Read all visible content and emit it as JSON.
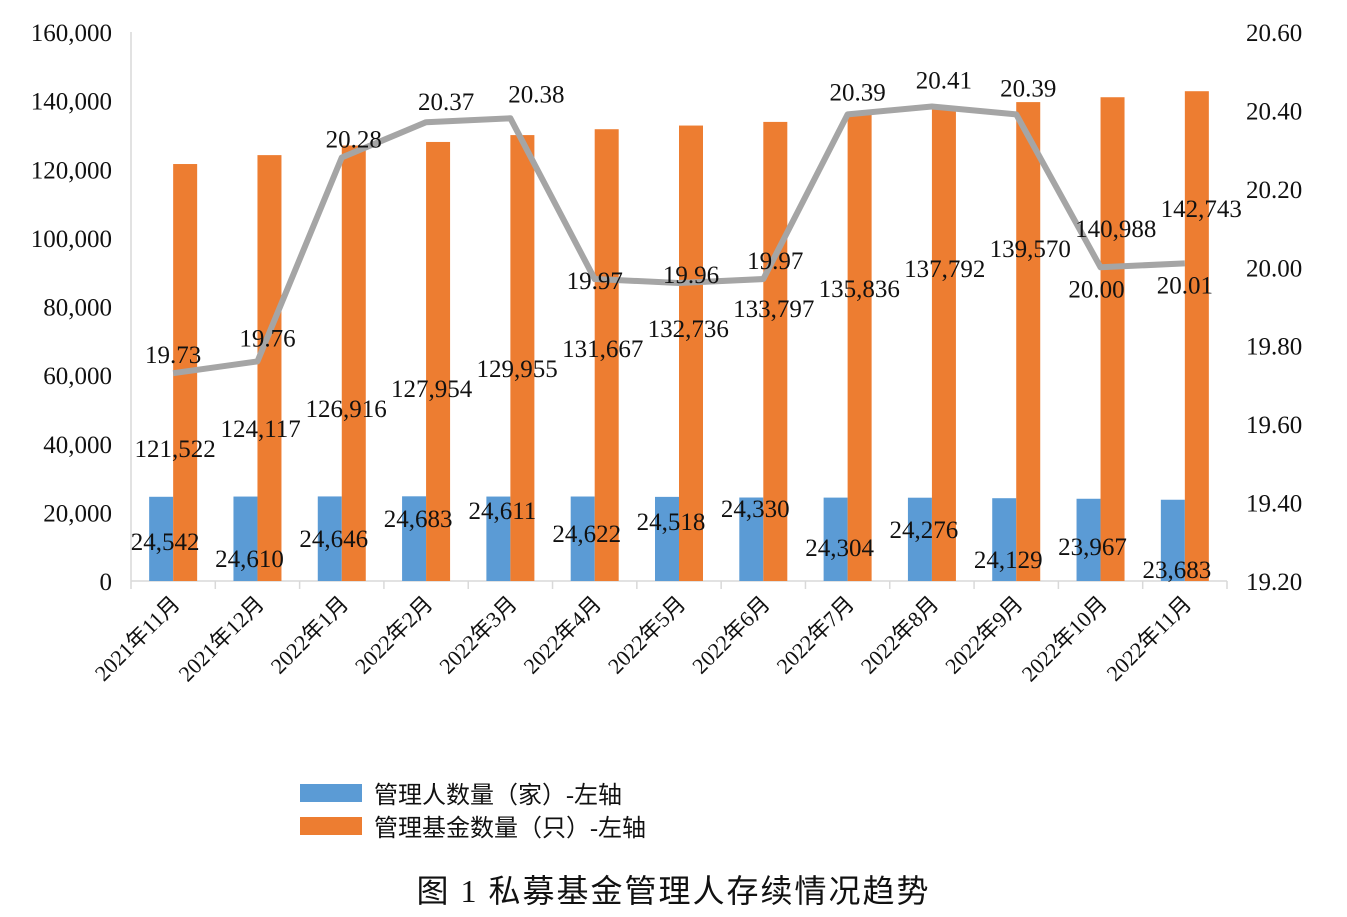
{
  "chart_data": {
    "type": "bar",
    "title": "图 1 私募基金管理人存续情况趋势",
    "categories": [
      "2021年11月",
      "2021年12月",
      "2022年1月",
      "2022年2月",
      "2022年3月",
      "2022年4月",
      "2022年5月",
      "2022年6月",
      "2022年7月",
      "2022年8月",
      "2022年9月",
      "2022年10月",
      "2022年11月"
    ],
    "series": [
      {
        "name": "管理人数量（家）-左轴",
        "type": "bar",
        "axis": "left",
        "color": "#5B9BD5",
        "values": [
          24542,
          24610,
          24646,
          24683,
          24611,
          24622,
          24518,
          24330,
          24304,
          24276,
          24129,
          23967,
          23683
        ],
        "labels": [
          "24,542",
          "24,610",
          "24,646",
          "24,683",
          "24,611",
          "24,622",
          "24,518",
          "24,330",
          "24,304",
          "24,276",
          "24,129",
          "23,967",
          "23,683"
        ]
      },
      {
        "name": "管理基金数量（只）-左轴",
        "type": "bar",
        "axis": "right",
        "color": "#ED7D31",
        "values": [
          121522,
          124117,
          126916,
          127954,
          129955,
          131667,
          132736,
          133797,
          135836,
          137792,
          139570,
          140988,
          142743
        ],
        "labels": [
          "121,522",
          "124,117",
          "126,916",
          "127,954",
          "129,955",
          "131,667",
          "132,736",
          "133,797",
          "135,836",
          "137,792",
          "139,570",
          "140,988",
          "142,743"
        ]
      },
      {
        "type": "line",
        "axis": "right",
        "color": "#A5A5A5",
        "values": [
          19.73,
          19.76,
          20.28,
          20.37,
          20.38,
          19.97,
          19.96,
          19.97,
          20.39,
          20.41,
          20.39,
          20.0,
          20.01
        ],
        "labels": [
          "19.73",
          "19.76",
          "20.28",
          "20.37",
          "20.38",
          "19.97",
          "19.96",
          "19.97",
          "20.39",
          "20.41",
          "20.39",
          "20.00",
          "20.01"
        ]
      }
    ],
    "left_axis": {
      "range": [
        0,
        160000
      ],
      "ticks": [
        "0",
        "20,000",
        "40,000",
        "60,000",
        "80,000",
        "100,000",
        "120,000",
        "140,000",
        "160,000"
      ]
    },
    "right_axis": {
      "range": [
        19.2,
        20.6
      ],
      "ticks": [
        "19.20",
        "19.40",
        "19.60",
        "19.80",
        "20.00",
        "20.20",
        "20.40",
        "20.60"
      ]
    },
    "grid": false,
    "legend_placement": "bottom"
  }
}
